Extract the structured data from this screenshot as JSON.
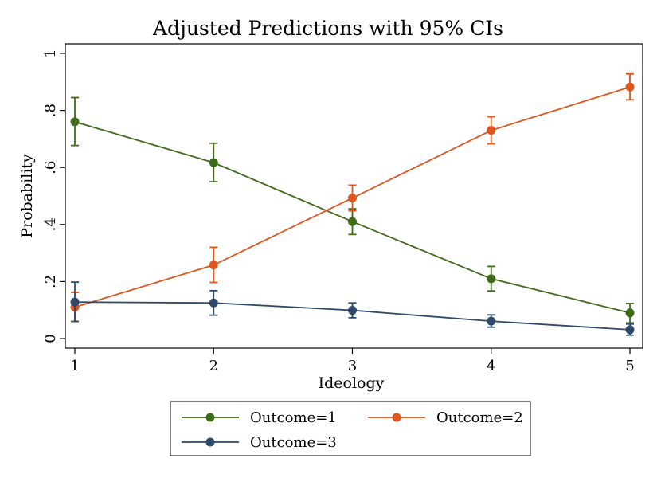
{
  "chart_data": {
    "type": "line",
    "title": "Adjusted Predictions with 95% CIs",
    "xlabel": "Ideology",
    "ylabel": "Probability",
    "xlim": [
      1,
      5
    ],
    "ylim": [
      0,
      1
    ],
    "xticks": [
      1,
      2,
      3,
      4,
      5
    ],
    "xtick_labels": [
      "1",
      "2",
      "3",
      "4",
      "5"
    ],
    "yticks": [
      0,
      0.2,
      0.4,
      0.6,
      0.8,
      1
    ],
    "ytick_labels": [
      "0",
      ".2",
      ".4",
      ".6",
      ".8",
      "1"
    ],
    "grid": false,
    "legend_position": "bottom",
    "x": [
      1,
      2,
      3,
      4,
      5
    ],
    "series": [
      {
        "name": "Outcome=1",
        "color": "#3e6b1a",
        "values": [
          0.76,
          0.617,
          0.41,
          0.21,
          0.09
        ],
        "ci_low": [
          0.677,
          0.55,
          0.365,
          0.167,
          0.055
        ],
        "ci_high": [
          0.845,
          0.685,
          0.455,
          0.253,
          0.123
        ]
      },
      {
        "name": "Outcome=2",
        "color": "#e0541e",
        "values": [
          0.11,
          0.258,
          0.493,
          0.73,
          0.882
        ],
        "ci_low": [
          0.06,
          0.197,
          0.448,
          0.683,
          0.837
        ],
        "ci_high": [
          0.162,
          0.32,
          0.538,
          0.778,
          0.928
        ]
      },
      {
        "name": "Outcome=3",
        "color": "#2e4a6b",
        "values": [
          0.128,
          0.125,
          0.099,
          0.061,
          0.031
        ],
        "ci_low": [
          0.06,
          0.082,
          0.073,
          0.04,
          0.012
        ],
        "ci_high": [
          0.198,
          0.168,
          0.125,
          0.083,
          0.051
        ]
      }
    ]
  }
}
